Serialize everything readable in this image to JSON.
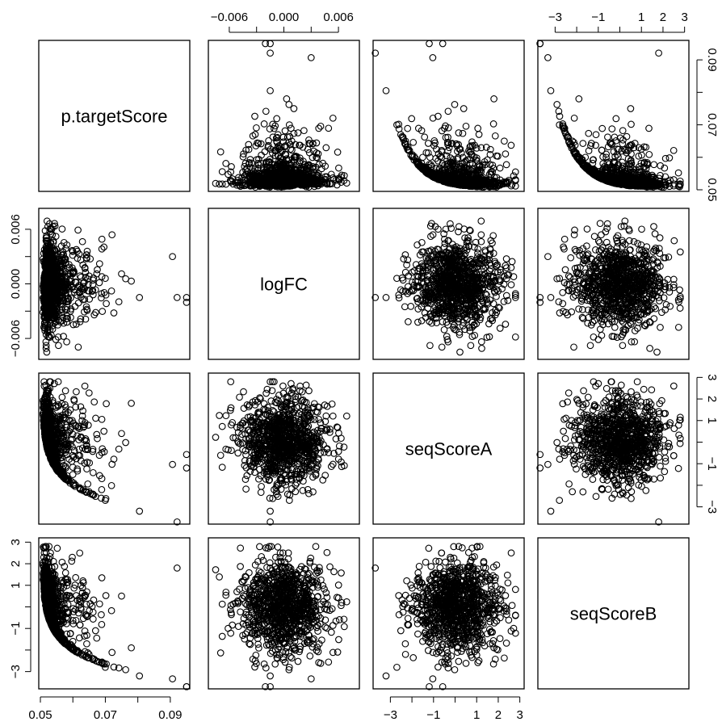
{
  "chart_data": {
    "type": "scatter",
    "title": "",
    "variables": [
      {
        "name": "p.targetScore",
        "ticks": [
          0.05,
          0.07,
          0.09
        ],
        "tick_labels": [
          "0.05",
          "0.07",
          "0.09"
        ],
        "range": [
          0.0495,
          0.096
        ]
      },
      {
        "name": "logFC",
        "ticks": [
          -0.006,
          0.0,
          0.006
        ],
        "tick_labels": [
          "−0.006",
          "0.000",
          "0.006"
        ],
        "range": [
          -0.0083,
          0.0083
        ]
      },
      {
        "name": "seqScoreA",
        "ticks": [
          -3,
          -1,
          1,
          2,
          3
        ],
        "tick_labels": [
          "−3",
          "−1",
          "1",
          "2",
          "3"
        ],
        "range": [
          -3.8,
          3.2
        ]
      },
      {
        "name": "seqScoreB",
        "ticks": [
          -3,
          -1,
          1,
          2,
          3
        ],
        "tick_labels": [
          "−3",
          "−1",
          "1",
          "2",
          "3"
        ],
        "range": [
          -3.8,
          3.2
        ]
      }
    ],
    "axes_placement": {
      "bottom": [
        0,
        2
      ],
      "top": [
        1,
        3
      ],
      "left": [
        1,
        3
      ],
      "right": [
        0,
        2
      ]
    },
    "minor_ticks_seqScore": [
      -2,
      0
    ],
    "n_points": 1000,
    "sample_points": [
      {
        "p.targetScore": 0.0512,
        "logFC": -0.0001,
        "seqScoreA": 2.6,
        "seqScoreB": 2.5
      },
      {
        "p.targetScore": 0.0525,
        "logFC": 0.0002,
        "seqScoreA": 1.5,
        "seqScoreB": 1.2
      },
      {
        "p.targetScore": 0.055,
        "logFC": -0.0005,
        "seqScoreA": 0.2,
        "seqScoreB": -0.1
      },
      {
        "p.targetScore": 0.06,
        "logFC": 0.0012,
        "seqScoreA": -1.5,
        "seqScoreB": -1.6
      },
      {
        "p.targetScore": 0.065,
        "logFC": -0.0008,
        "seqScoreA": -2.3,
        "seqScoreB": -2.2
      },
      {
        "p.targetScore": 0.07,
        "logFC": 0.0006,
        "seqScoreA": -2.7,
        "seqScoreB": -2.8
      },
      {
        "p.targetScore": 0.0805,
        "logFC": -0.0015,
        "seqScoreA": -3.2,
        "seqScoreB": -3.2
      },
      {
        "p.targetScore": 0.0921,
        "logFC": -0.0015,
        "seqScoreA": -3.7,
        "seqScoreB": 1.8
      },
      {
        "p.targetScore": 0.095,
        "logFC": -0.0015,
        "seqScoreA": -1.2,
        "seqScoreB": -3.7
      },
      {
        "p.targetScore": 0.078,
        "logFC": 0.0003,
        "seqScoreA": 1.8,
        "seqScoreB": -1.9
      },
      {
        "p.targetScore": 0.075,
        "logFC": 0.0011,
        "seqScoreA": 0.4,
        "seqScoreB": 0.5
      }
    ],
    "xlabel": "",
    "ylabel": "",
    "grid": false,
    "legend": "none"
  }
}
